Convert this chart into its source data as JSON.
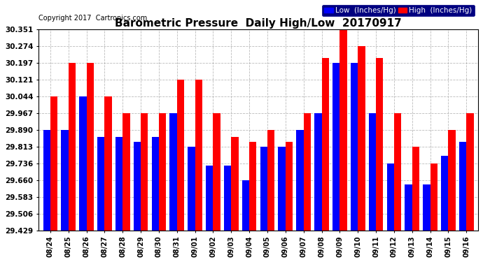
{
  "title": "Barometric Pressure  Daily High/Low  20170917",
  "copyright": "Copyright 2017  Cartronics.com",
  "legend_low": "Low  (Inches/Hg)",
  "legend_high": "High  (Inches/Hg)",
  "categories": [
    "08/24",
    "08/25",
    "08/26",
    "08/27",
    "08/28",
    "08/29",
    "08/30",
    "08/31",
    "09/01",
    "09/02",
    "09/03",
    "09/04",
    "09/05",
    "09/06",
    "09/07",
    "09/08",
    "09/09",
    "09/10",
    "09/11",
    "09/12",
    "09/13",
    "09/14",
    "09/15",
    "09/16"
  ],
  "low_values": [
    29.89,
    29.89,
    30.044,
    29.858,
    29.858,
    29.836,
    29.858,
    29.967,
    29.813,
    29.726,
    29.726,
    29.66,
    29.813,
    29.813,
    29.89,
    29.967,
    30.197,
    30.197,
    29.967,
    29.736,
    29.638,
    29.638,
    29.77,
    29.836
  ],
  "high_values": [
    30.044,
    30.197,
    30.197,
    30.044,
    29.967,
    29.967,
    29.967,
    30.121,
    30.121,
    29.967,
    29.858,
    29.836,
    29.89,
    29.836,
    29.967,
    30.22,
    30.351,
    30.274,
    30.22,
    29.967,
    29.813,
    29.736,
    29.89,
    29.967
  ],
  "ylim": [
    29.429,
    30.351
  ],
  "yticks": [
    29.429,
    29.506,
    29.583,
    29.66,
    29.736,
    29.813,
    29.89,
    29.967,
    30.044,
    30.121,
    30.197,
    30.274,
    30.351
  ],
  "bar_color_low": "#0000ff",
  "bar_color_high": "#ff0000",
  "bg_color": "#ffffff",
  "grid_color": "#aaaaaa",
  "title_fontsize": 11,
  "copyright_fontsize": 7
}
